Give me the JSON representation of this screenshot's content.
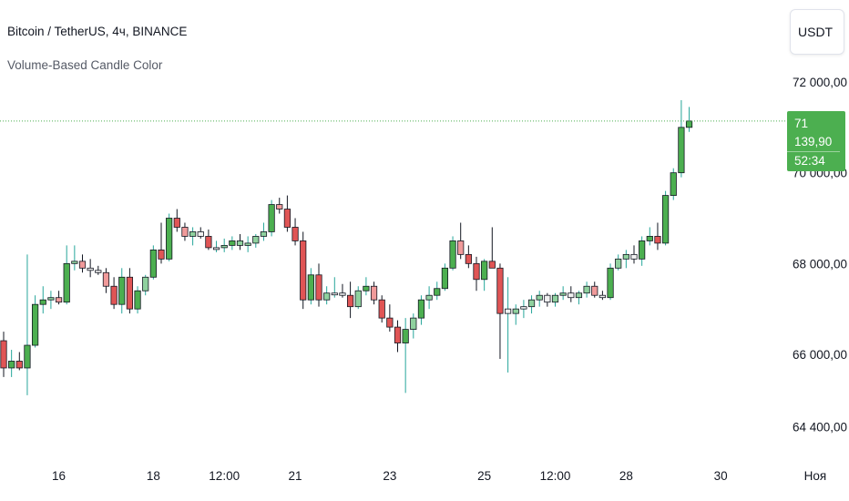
{
  "header": {
    "title": "Bitcoin / TetherUS, 4ч, BINANCE",
    "indicator": "Volume-Based Candle Color"
  },
  "currency_button": {
    "label": "USDT"
  },
  "last_price": {
    "value": "71 139,90",
    "countdown": "52:34"
  },
  "colors": {
    "up": "#4caf50",
    "up_light": "#8fd19e",
    "down": "#e05555",
    "down_light": "#f09a9a",
    "neutral": "#f0f0f0",
    "wick": "#26a69a",
    "wick_down": "#131722"
  },
  "chart_data": {
    "type": "candlestick",
    "symbol": "BTCUSDT",
    "interval": "4ч",
    "ylim": [
      63500,
      73500
    ],
    "y_ticks": [
      {
        "value": 72000,
        "label": "72 000,00"
      },
      {
        "value": 70000,
        "label": "70 000,00"
      },
      {
        "value": 68000,
        "label": "68 000,00"
      },
      {
        "value": 66000,
        "label": "66 000,00"
      },
      {
        "value": 64400,
        "label": "64 400,00"
      }
    ],
    "x_ticks": [
      {
        "index": 7,
        "label": "16"
      },
      {
        "index": 19,
        "label": "18"
      },
      {
        "index": 28,
        "label": "12:00"
      },
      {
        "index": 37,
        "label": "21"
      },
      {
        "index": 49,
        "label": "23"
      },
      {
        "index": 61,
        "label": "25"
      },
      {
        "index": 70,
        "label": "12:00"
      },
      {
        "index": 79,
        "label": "28"
      },
      {
        "index": 91,
        "label": "30"
      },
      {
        "index": 103,
        "label": "Ноя"
      }
    ],
    "current_price": 71139.9,
    "candles": [
      {
        "o": 66300,
        "h": 66500,
        "l": 65500,
        "c": 65700,
        "t": "dn"
      },
      {
        "o": 65700,
        "h": 66100,
        "l": 65500,
        "c": 65850,
        "t": "up"
      },
      {
        "o": 65850,
        "h": 66050,
        "l": 65650,
        "c": 65700,
        "t": "dn"
      },
      {
        "o": 65700,
        "h": 68200,
        "l": 65100,
        "c": 66200,
        "t": "up"
      },
      {
        "o": 66200,
        "h": 67300,
        "l": 66150,
        "c": 67100,
        "t": "up"
      },
      {
        "o": 67100,
        "h": 67500,
        "l": 66900,
        "c": 67200,
        "t": "up"
      },
      {
        "o": 67200,
        "h": 67400,
        "l": 67000,
        "c": 67250,
        "t": "up2"
      },
      {
        "o": 67250,
        "h": 67400,
        "l": 67100,
        "c": 67150,
        "t": "dn2"
      },
      {
        "o": 67150,
        "h": 68400,
        "l": 67100,
        "c": 68000,
        "t": "up"
      },
      {
        "o": 68000,
        "h": 68400,
        "l": 67850,
        "c": 68050,
        "t": "up2"
      },
      {
        "o": 68050,
        "h": 68200,
        "l": 67800,
        "c": 67900,
        "t": "dn2"
      },
      {
        "o": 67900,
        "h": 68100,
        "l": 67700,
        "c": 67850,
        "t": "nu"
      },
      {
        "o": 67850,
        "h": 67950,
        "l": 67750,
        "c": 67800,
        "t": "nu"
      },
      {
        "o": 67800,
        "h": 67900,
        "l": 67350,
        "c": 67500,
        "t": "dn2"
      },
      {
        "o": 67500,
        "h": 67700,
        "l": 67000,
        "c": 67100,
        "t": "dn"
      },
      {
        "o": 67100,
        "h": 67900,
        "l": 66900,
        "c": 67700,
        "t": "up"
      },
      {
        "o": 67700,
        "h": 67900,
        "l": 66900,
        "c": 67000,
        "t": "dn"
      },
      {
        "o": 67000,
        "h": 67500,
        "l": 66900,
        "c": 67400,
        "t": "up"
      },
      {
        "o": 67400,
        "h": 67750,
        "l": 67300,
        "c": 67700,
        "t": "up2"
      },
      {
        "o": 67700,
        "h": 68400,
        "l": 67650,
        "c": 68300,
        "t": "up"
      },
      {
        "o": 68300,
        "h": 68900,
        "l": 68000,
        "c": 68100,
        "t": "dn"
      },
      {
        "o": 68100,
        "h": 69100,
        "l": 68050,
        "c": 69000,
        "t": "up"
      },
      {
        "o": 69000,
        "h": 69200,
        "l": 68700,
        "c": 68800,
        "t": "dn"
      },
      {
        "o": 68800,
        "h": 68900,
        "l": 68500,
        "c": 68600,
        "t": "dn2"
      },
      {
        "o": 68600,
        "h": 68800,
        "l": 68400,
        "c": 68700,
        "t": "up2"
      },
      {
        "o": 68700,
        "h": 68800,
        "l": 68550,
        "c": 68600,
        "t": "nu"
      },
      {
        "o": 68600,
        "h": 68750,
        "l": 68300,
        "c": 68350,
        "t": "dn"
      },
      {
        "o": 68350,
        "h": 68500,
        "l": 68250,
        "c": 68350,
        "t": "nu"
      },
      {
        "o": 68350,
        "h": 68550,
        "l": 68250,
        "c": 68400,
        "t": "up2"
      },
      {
        "o": 68400,
        "h": 68600,
        "l": 68300,
        "c": 68500,
        "t": "up"
      },
      {
        "o": 68500,
        "h": 68650,
        "l": 68300,
        "c": 68400,
        "t": "up2"
      },
      {
        "o": 68400,
        "h": 68600,
        "l": 68250,
        "c": 68450,
        "t": "up2"
      },
      {
        "o": 68450,
        "h": 68650,
        "l": 68350,
        "c": 68600,
        "t": "up2"
      },
      {
        "o": 68600,
        "h": 68900,
        "l": 68500,
        "c": 68700,
        "t": "up2"
      },
      {
        "o": 68700,
        "h": 69400,
        "l": 68600,
        "c": 69300,
        "t": "up"
      },
      {
        "o": 69300,
        "h": 69450,
        "l": 69100,
        "c": 69200,
        "t": "dn2"
      },
      {
        "o": 69200,
        "h": 69500,
        "l": 68700,
        "c": 68800,
        "t": "dn"
      },
      {
        "o": 68800,
        "h": 69000,
        "l": 68400,
        "c": 68500,
        "t": "dn"
      },
      {
        "o": 68500,
        "h": 68700,
        "l": 67000,
        "c": 67200,
        "t": "dn"
      },
      {
        "o": 67200,
        "h": 67900,
        "l": 67100,
        "c": 67750,
        "t": "up"
      },
      {
        "o": 67750,
        "h": 68000,
        "l": 67050,
        "c": 67200,
        "t": "dn"
      },
      {
        "o": 67200,
        "h": 67500,
        "l": 67100,
        "c": 67350,
        "t": "up2"
      },
      {
        "o": 67350,
        "h": 67700,
        "l": 67250,
        "c": 67350,
        "t": "nu"
      },
      {
        "o": 67350,
        "h": 67550,
        "l": 67250,
        "c": 67300,
        "t": "nu"
      },
      {
        "o": 67300,
        "h": 67600,
        "l": 66800,
        "c": 67050,
        "t": "dn"
      },
      {
        "o": 67050,
        "h": 67500,
        "l": 67000,
        "c": 67400,
        "t": "up2"
      },
      {
        "o": 67400,
        "h": 67700,
        "l": 67300,
        "c": 67500,
        "t": "up"
      },
      {
        "o": 67500,
        "h": 67600,
        "l": 67100,
        "c": 67200,
        "t": "dn2"
      },
      {
        "o": 67200,
        "h": 67300,
        "l": 66700,
        "c": 66800,
        "t": "dn"
      },
      {
        "o": 66800,
        "h": 67100,
        "l": 66500,
        "c": 66600,
        "t": "dn"
      },
      {
        "o": 66600,
        "h": 66750,
        "l": 66050,
        "c": 66250,
        "t": "dn"
      },
      {
        "o": 66250,
        "h": 66800,
        "l": 65150,
        "c": 66550,
        "t": "up"
      },
      {
        "o": 66550,
        "h": 66900,
        "l": 66350,
        "c": 66800,
        "t": "up2"
      },
      {
        "o": 66800,
        "h": 67300,
        "l": 66650,
        "c": 67200,
        "t": "up"
      },
      {
        "o": 67200,
        "h": 67500,
        "l": 67000,
        "c": 67300,
        "t": "up2"
      },
      {
        "o": 67300,
        "h": 67600,
        "l": 67200,
        "c": 67450,
        "t": "up"
      },
      {
        "o": 67450,
        "h": 68000,
        "l": 67400,
        "c": 67900,
        "t": "up"
      },
      {
        "o": 67900,
        "h": 68600,
        "l": 67850,
        "c": 68500,
        "t": "up"
      },
      {
        "o": 68500,
        "h": 68900,
        "l": 68100,
        "c": 68200,
        "t": "dn2"
      },
      {
        "o": 68200,
        "h": 68400,
        "l": 67900,
        "c": 68000,
        "t": "dn"
      },
      {
        "o": 68000,
        "h": 68150,
        "l": 67400,
        "c": 67650,
        "t": "dn"
      },
      {
        "o": 67650,
        "h": 68100,
        "l": 67400,
        "c": 68050,
        "t": "up"
      },
      {
        "o": 68050,
        "h": 68800,
        "l": 67900,
        "c": 67900,
        "t": "dn"
      },
      {
        "o": 67900,
        "h": 68000,
        "l": 65900,
        "c": 66900,
        "t": "dn"
      },
      {
        "o": 66900,
        "h": 67700,
        "l": 65600,
        "c": 67000,
        "t": "wick"
      },
      {
        "o": 66900,
        "h": 67100,
        "l": 66650,
        "c": 67000,
        "t": "up2"
      },
      {
        "o": 67000,
        "h": 67200,
        "l": 66800,
        "c": 67050,
        "t": "nu"
      },
      {
        "o": 67050,
        "h": 67300,
        "l": 66900,
        "c": 67200,
        "t": "up2"
      },
      {
        "o": 67200,
        "h": 67400,
        "l": 67050,
        "c": 67300,
        "t": "up2"
      },
      {
        "o": 67300,
        "h": 67350,
        "l": 67050,
        "c": 67150,
        "t": "nu"
      },
      {
        "o": 67150,
        "h": 67350,
        "l": 67050,
        "c": 67300,
        "t": "up2"
      },
      {
        "o": 67300,
        "h": 67500,
        "l": 67200,
        "c": 67350,
        "t": "up2"
      },
      {
        "o": 67350,
        "h": 67500,
        "l": 67150,
        "c": 67250,
        "t": "nu"
      },
      {
        "o": 67250,
        "h": 67400,
        "l": 67100,
        "c": 67350,
        "t": "up2"
      },
      {
        "o": 67350,
        "h": 67600,
        "l": 67250,
        "c": 67500,
        "t": "up2"
      },
      {
        "o": 67500,
        "h": 67600,
        "l": 67250,
        "c": 67300,
        "t": "dn2"
      },
      {
        "o": 67300,
        "h": 67400,
        "l": 67200,
        "c": 67250,
        "t": "wick"
      },
      {
        "o": 67250,
        "h": 68000,
        "l": 67200,
        "c": 67900,
        "t": "up"
      },
      {
        "o": 67900,
        "h": 68200,
        "l": 67850,
        "c": 68100,
        "t": "up2"
      },
      {
        "o": 68100,
        "h": 68300,
        "l": 67900,
        "c": 68200,
        "t": "up2"
      },
      {
        "o": 68200,
        "h": 68400,
        "l": 68000,
        "c": 68100,
        "t": "nu"
      },
      {
        "o": 68100,
        "h": 68600,
        "l": 67950,
        "c": 68500,
        "t": "up"
      },
      {
        "o": 68500,
        "h": 68800,
        "l": 68400,
        "c": 68600,
        "t": "up"
      },
      {
        "o": 68600,
        "h": 68900,
        "l": 68300,
        "c": 68450,
        "t": "dn"
      },
      {
        "o": 68450,
        "h": 69600,
        "l": 68400,
        "c": 69500,
        "t": "up"
      },
      {
        "o": 69500,
        "h": 70100,
        "l": 69400,
        "c": 70000,
        "t": "up"
      },
      {
        "o": 70000,
        "h": 71600,
        "l": 69900,
        "c": 71000,
        "t": "up"
      },
      {
        "o": 71000,
        "h": 71450,
        "l": 70900,
        "c": 71140,
        "t": "up"
      }
    ]
  }
}
